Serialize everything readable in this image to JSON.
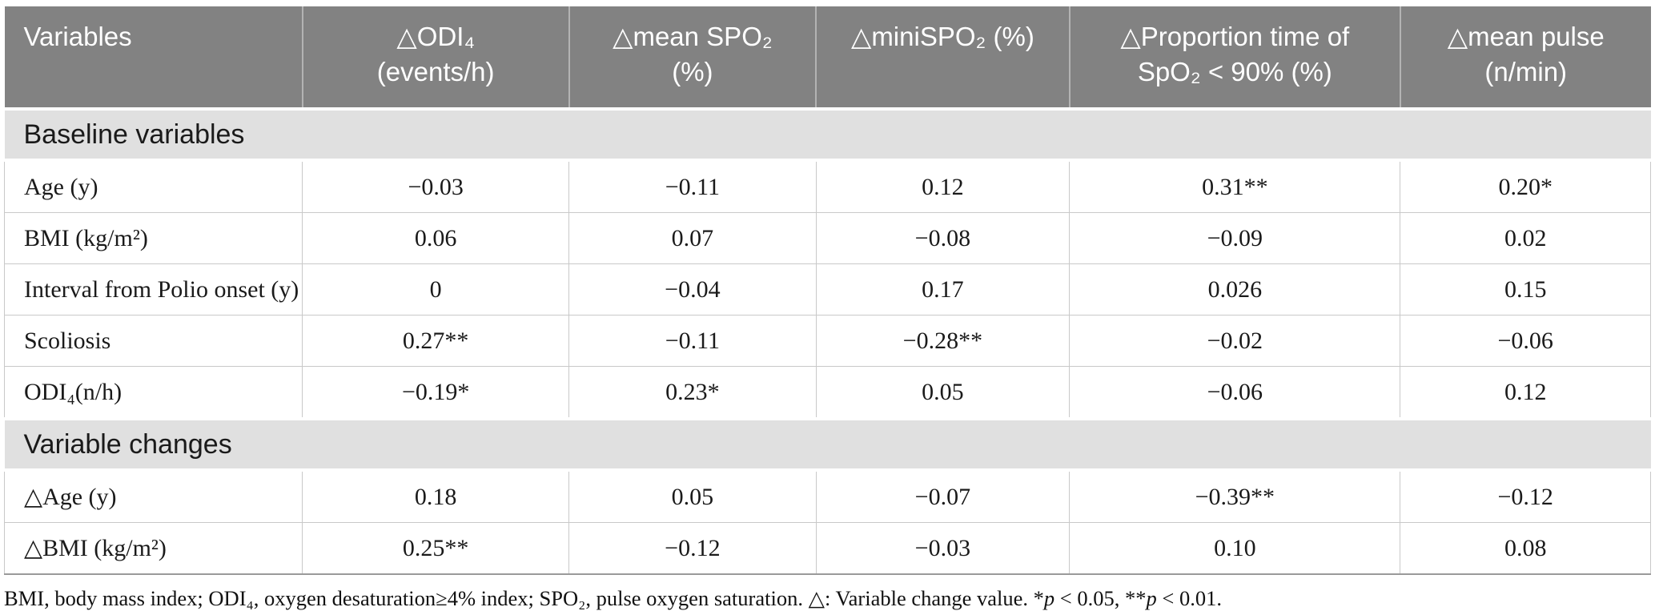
{
  "table": {
    "header": {
      "variables": "Variables",
      "cols": [
        "△ODI₄\n(events/h)",
        "△mean SPO₂\n(%)",
        "△miniSPO₂ (%)",
        "△Proportion time of\nSpO₂ < 90% (%)",
        "△mean pulse\n(n/min)"
      ]
    },
    "sections": [
      {
        "title": "Baseline variables",
        "rows": [
          {
            "label": "Age (y)",
            "values": [
              "−0.03",
              "−0.11",
              "0.12",
              "0.31**",
              "0.20*"
            ]
          },
          {
            "label": "BMI (kg/m²)",
            "values": [
              "0.06",
              "0.07",
              "−0.08",
              "−0.09",
              "0.02"
            ]
          },
          {
            "label": "Interval from Polio onset (y)",
            "values": [
              "0",
              "−0.04",
              "0.17",
              "0.026",
              "0.15"
            ]
          },
          {
            "label": "Scoliosis",
            "values": [
              "0.27**",
              "−0.11",
              "−0.28**",
              "−0.02",
              "−0.06"
            ]
          },
          {
            "label": "ODI₄(n/h)",
            "values": [
              "−0.19*",
              "0.23*",
              "0.05",
              "−0.06",
              "0.12"
            ]
          }
        ]
      },
      {
        "title": "Variable changes",
        "rows": [
          {
            "label": "△Age (y)",
            "values": [
              "0.18",
              "0.05",
              "−0.07",
              "−0.39**",
              "−0.12"
            ]
          },
          {
            "label": "△BMI (kg/m²)",
            "values": [
              "0.25**",
              "−0.12",
              "−0.03",
              "0.10",
              "0.08"
            ]
          }
        ]
      }
    ]
  },
  "footnote": {
    "part1": "BMI, body mass index; ODI₄, oxygen desaturation≥4% index; SPO₂, pulse oxygen saturation. △: Variable change value. *",
    "p1": "p",
    "part2": " < 0.05, **",
    "p2": "p",
    "part3": " < 0.01.",
    "colors": {
      "header_bg": "#828282",
      "header_text": "#ffffff",
      "section_bg": "#e0e0e0",
      "grid_line": "#c9c9c9",
      "body_text": "#1a1a1a"
    }
  }
}
